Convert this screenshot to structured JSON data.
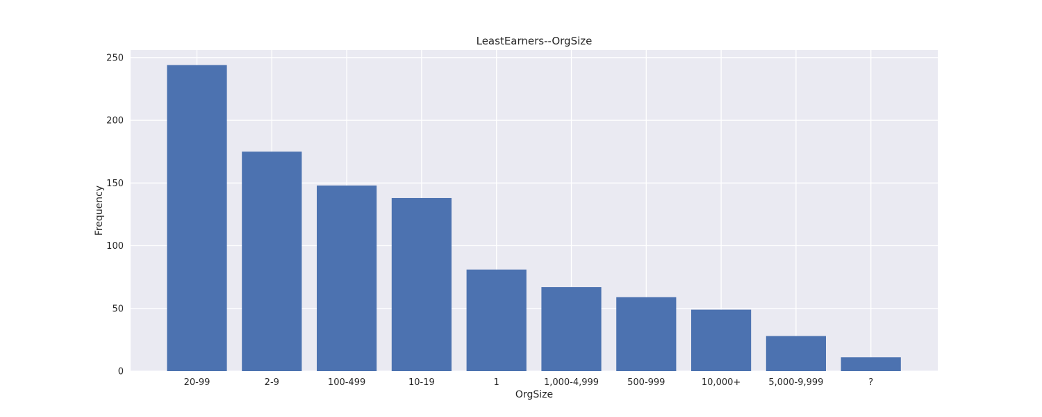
{
  "chart_data": {
    "type": "bar",
    "title": "LeastEarners--OrgSize",
    "xlabel": "OrgSize",
    "ylabel": "Frequency",
    "categories": [
      "20-99",
      "2-9",
      "100-499",
      "10-19",
      "1",
      "1,000-4,999",
      "500-999",
      "10,000+",
      "5,000-9,999",
      "?"
    ],
    "values": [
      244,
      175,
      148,
      138,
      81,
      67,
      59,
      49,
      28,
      11
    ],
    "ylim": [
      0,
      256
    ],
    "yticks": [
      0,
      50,
      100,
      150,
      200,
      250
    ],
    "grid": true,
    "legend": "none",
    "colors": {
      "bar": "#4c72b0",
      "plot_background": "#eaeaf2",
      "grid": "#ffffff",
      "text": "#262626"
    }
  }
}
